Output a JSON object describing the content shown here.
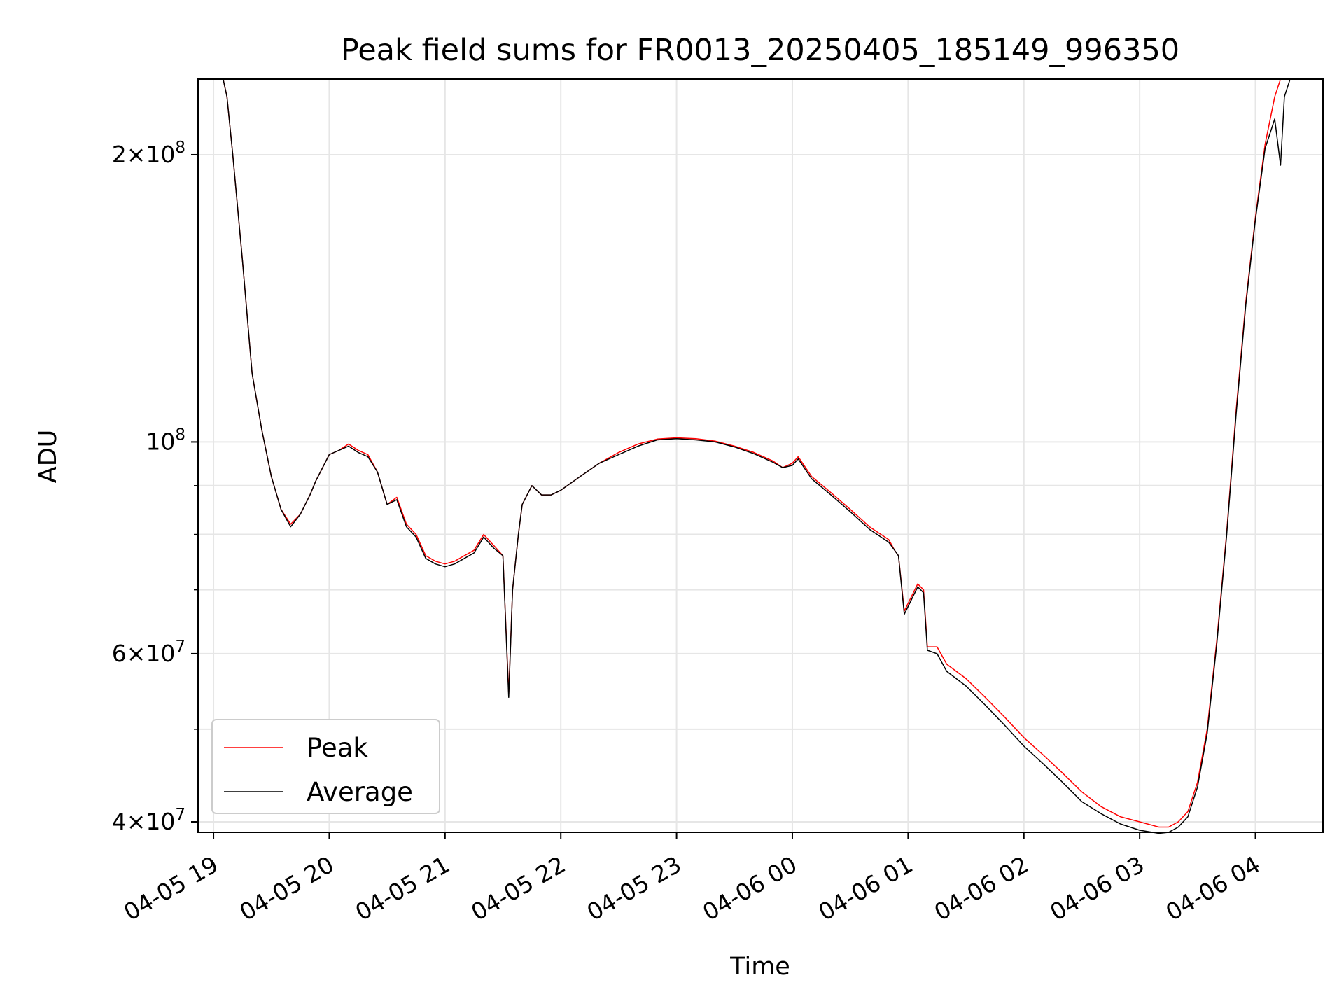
{
  "chart_data": {
    "type": "line",
    "title": "Peak field sums for FR0013_20250405_185149_996350",
    "xlabel": "Time",
    "ylabel": "ADU",
    "yscale": "log",
    "ylim": [
      39000000,
      240000000
    ],
    "xlim": [
      "2025-04-05 18:52",
      "2025-04-06 04:35"
    ],
    "grid": true,
    "legend_position": "lower-left",
    "x_ticks": [
      {
        "t": "2025-04-05 19:00",
        "label": "04-05 19"
      },
      {
        "t": "2025-04-05 20:00",
        "label": "04-05 20"
      },
      {
        "t": "2025-04-05 21:00",
        "label": "04-05 21"
      },
      {
        "t": "2025-04-05 22:00",
        "label": "04-05 22"
      },
      {
        "t": "2025-04-05 23:00",
        "label": "04-05 23"
      },
      {
        "t": "2025-04-06 00:00",
        "label": "04-06 00"
      },
      {
        "t": "2025-04-06 01:00",
        "label": "04-06 01"
      },
      {
        "t": "2025-04-06 02:00",
        "label": "04-06 02"
      },
      {
        "t": "2025-04-06 03:00",
        "label": "04-06 03"
      },
      {
        "t": "2025-04-06 04:00",
        "label": "04-06 04"
      }
    ],
    "y_ticks": [
      {
        "v": 40000000,
        "base": "4×10",
        "exp": "7"
      },
      {
        "v": 60000000,
        "base": "6×10",
        "exp": "7"
      },
      {
        "v": 100000000,
        "base": "10",
        "exp": "8"
      },
      {
        "v": 200000000,
        "base": "2×10",
        "exp": "8"
      }
    ],
    "y_minor_ticks": [
      50000000,
      70000000,
      80000000,
      90000000
    ],
    "x": [
      "2025-04-05 18:52",
      "2025-04-05 19:05",
      "2025-04-05 19:07",
      "2025-04-05 19:10",
      "2025-04-05 19:15",
      "2025-04-05 19:20",
      "2025-04-05 19:25",
      "2025-04-05 19:30",
      "2025-04-05 19:35",
      "2025-04-05 19:40",
      "2025-04-05 19:45",
      "2025-04-05 19:50",
      "2025-04-05 19:53",
      "2025-04-05 20:00",
      "2025-04-05 20:05",
      "2025-04-05 20:10",
      "2025-04-05 20:15",
      "2025-04-05 20:20",
      "2025-04-05 20:25",
      "2025-04-05 20:30",
      "2025-04-05 20:35",
      "2025-04-05 20:40",
      "2025-04-05 20:45",
      "2025-04-05 20:50",
      "2025-04-05 20:55",
      "2025-04-05 21:00",
      "2025-04-05 21:05",
      "2025-04-05 21:10",
      "2025-04-05 21:15",
      "2025-04-05 21:20",
      "2025-04-05 21:25",
      "2025-04-05 21:30",
      "2025-04-05 21:33",
      "2025-04-05 21:35",
      "2025-04-05 21:38",
      "2025-04-05 21:40",
      "2025-04-05 21:45",
      "2025-04-05 21:50",
      "2025-04-05 21:55",
      "2025-04-05 22:00",
      "2025-04-05 22:10",
      "2025-04-05 22:20",
      "2025-04-05 22:30",
      "2025-04-05 22:40",
      "2025-04-05 22:50",
      "2025-04-05 23:00",
      "2025-04-05 23:10",
      "2025-04-05 23:20",
      "2025-04-05 23:30",
      "2025-04-05 23:40",
      "2025-04-05 23:50",
      "2025-04-05 23:55",
      "2025-04-06 00:00",
      "2025-04-06 00:03",
      "2025-04-06 00:10",
      "2025-04-06 00:20",
      "2025-04-06 00:30",
      "2025-04-06 00:40",
      "2025-04-06 00:50",
      "2025-04-06 00:53",
      "2025-04-06 00:55",
      "2025-04-06 00:58",
      "2025-04-06 01:05",
      "2025-04-06 01:08",
      "2025-04-06 01:10",
      "2025-04-06 01:15",
      "2025-04-06 01:20",
      "2025-04-06 01:30",
      "2025-04-06 01:40",
      "2025-04-06 01:50",
      "2025-04-06 02:00",
      "2025-04-06 02:10",
      "2025-04-06 02:20",
      "2025-04-06 02:30",
      "2025-04-06 02:40",
      "2025-04-06 02:50",
      "2025-04-06 03:00",
      "2025-04-06 03:10",
      "2025-04-06 03:15",
      "2025-04-06 03:20",
      "2025-04-06 03:25",
      "2025-04-06 03:30",
      "2025-04-06 03:35",
      "2025-04-06 03:40",
      "2025-04-06 03:45",
      "2025-04-06 03:50",
      "2025-04-06 03:55",
      "2025-04-06 04:00",
      "2025-04-06 04:05",
      "2025-04-06 04:10",
      "2025-04-06 04:13",
      "2025-04-06 04:15",
      "2025-04-06 04:18",
      "2025-04-06 04:22",
      "2025-04-06 04:25",
      "2025-04-06 04:35"
    ],
    "series": [
      {
        "name": "Peak",
        "color": "#ff0000",
        "values": [
          240000000,
          240000000,
          230000000,
          200000000,
          155000000,
          118000000,
          103000000,
          92000000,
          85000000,
          82000000,
          84000000,
          88000000,
          91000000,
          97000000,
          98000000,
          99500000,
          98000000,
          97000000,
          93000000,
          86000000,
          87500000,
          82000000,
          80000000,
          76000000,
          75000000,
          74500000,
          75000000,
          76000000,
          77000000,
          80000000,
          78000000,
          76000000,
          54500000,
          70000000,
          80000000,
          86000000,
          90000000,
          88000000,
          88000000,
          89000000,
          92000000,
          95000000,
          97500000,
          99500000,
          100700000,
          101000000,
          100800000,
          100200000,
          99000000,
          97500000,
          95500000,
          94000000,
          95000000,
          96500000,
          92000000,
          88500000,
          85000000,
          81500000,
          79000000,
          77000000,
          76000000,
          66500000,
          71000000,
          70000000,
          61000000,
          61000000,
          58500000,
          56500000,
          54000000,
          51500000,
          49000000,
          47000000,
          45000000,
          43000000,
          41500000,
          40500000,
          40000000,
          39500000,
          39500000,
          40000000,
          41000000,
          44000000,
          50000000,
          62000000,
          80000000,
          108000000,
          140000000,
          172000000,
          205000000,
          230000000,
          240000000,
          240000000,
          240000000,
          240000000,
          240000000,
          240000000
        ]
      },
      {
        "name": "Average",
        "color": "#000000",
        "values": [
          240000000,
          240000000,
          230000000,
          200000000,
          155000000,
          118000000,
          103000000,
          92000000,
          85000000,
          81500000,
          84000000,
          88000000,
          91000000,
          97000000,
          98000000,
          99000000,
          97500000,
          96500000,
          93000000,
          86000000,
          87000000,
          81500000,
          79500000,
          75500000,
          74500000,
          74000000,
          74500000,
          75500000,
          76500000,
          79500000,
          77500000,
          76000000,
          54000000,
          70000000,
          80000000,
          86000000,
          90000000,
          88000000,
          88000000,
          89000000,
          92000000,
          95000000,
          97000000,
          99000000,
          100500000,
          100800000,
          100500000,
          100000000,
          98800000,
          97200000,
          95200000,
          94000000,
          94500000,
          96000000,
          91500000,
          88000000,
          84500000,
          81000000,
          78500000,
          77000000,
          76000000,
          66000000,
          70500000,
          69500000,
          60500000,
          60000000,
          57500000,
          55500000,
          53000000,
          50500000,
          48000000,
          46000000,
          44000000,
          42000000,
          40800000,
          39800000,
          39200000,
          38900000,
          39000000,
          39500000,
          40500000,
          43500000,
          49500000,
          61500000,
          79500000,
          107000000,
          139000000,
          171000000,
          203000000,
          218000000,
          195000000,
          230000000,
          240000000,
          240000000,
          240000000,
          240000000
        ]
      }
    ],
    "legend": [
      {
        "label": "Peak",
        "color": "#ff0000"
      },
      {
        "label": "Average",
        "color": "#000000"
      }
    ]
  }
}
